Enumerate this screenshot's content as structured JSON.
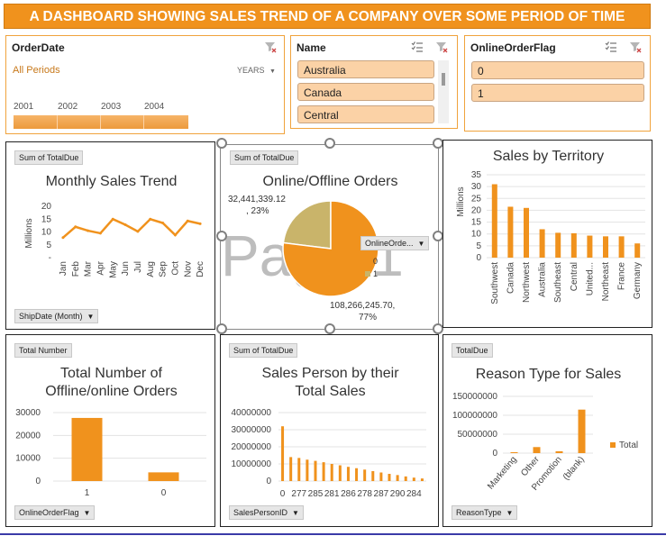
{
  "banner": {
    "title": "A DASHBOARD SHOWING SALES TREND OF A COMPANY OVER SOME PERIOD OF TIME"
  },
  "slicers": {
    "order_date": {
      "title": "OrderDate",
      "period_label": "All Periods",
      "granularity": "YEARS",
      "years": [
        "2001",
        "2002",
        "2003",
        "2004"
      ]
    },
    "name": {
      "title": "Name",
      "items": [
        "Australia",
        "Canada",
        "Central"
      ]
    },
    "online_flag": {
      "title": "OnlineOrderFlag",
      "items": [
        "0",
        "1"
      ]
    }
  },
  "watermark": "Page 1",
  "colors": {
    "accent": "#f0921d",
    "pie_second": "#c9b46a",
    "slicer_item": "#fbd2a6"
  },
  "chart_data": [
    {
      "type": "line",
      "title": "Monthly Sales Trend",
      "value_field": "Sum of TotalDue",
      "axis_field": "ShipDate (Month)",
      "ylabel": "Millions",
      "ylim": [
        0,
        20
      ],
      "yticks": [
        "20",
        "15",
        "10",
        "5",
        "-"
      ],
      "categories": [
        "Jan",
        "Feb",
        "Mar",
        "Apr",
        "May",
        "Jun",
        "Jul",
        "Aug",
        "Sep",
        "Oct",
        "Nov",
        "Dec"
      ],
      "values": [
        7.8,
        12,
        10.5,
        9.5,
        15,
        12.8,
        10.2,
        15,
        13.5,
        8.8,
        14.3,
        13.2
      ]
    },
    {
      "type": "pie",
      "title": "Online/Offline Orders",
      "value_field": "Sum of TotalDue",
      "legend_field": "OnlineOrde...",
      "slices": [
        {
          "name": "0",
          "value": 108266245.7,
          "label": "108,266,245.70,",
          "pct": "77%"
        },
        {
          "name": "1",
          "value": 32441339.12,
          "label": "32,441,339.12",
          "pct": ", 23%"
        }
      ]
    },
    {
      "type": "bar",
      "title": "Sales by Territory",
      "ylabel": "Millions",
      "ylim": [
        0,
        35
      ],
      "yticks": [
        "35",
        "30",
        "25",
        "20",
        "15",
        "10",
        "5",
        "0"
      ],
      "categories": [
        "Southwest",
        "Canada",
        "Northwest",
        "Australia",
        "Southeast",
        "Central",
        "United...",
        "Northeast",
        "France",
        "Germany"
      ],
      "values": [
        31,
        21.5,
        21,
        12,
        10.5,
        10.3,
        9.3,
        9,
        9,
        6
      ]
    },
    {
      "type": "bar",
      "title_lines": [
        "Total Number of",
        "Offline/online Orders"
      ],
      "value_field": "Total Number",
      "axis_field": "OnlineOrderFlag",
      "ylim": [
        0,
        30000
      ],
      "yticks": [
        "30000",
        "20000",
        "10000",
        "0"
      ],
      "categories": [
        "1",
        "0"
      ],
      "values": [
        27659,
        3806
      ]
    },
    {
      "type": "bar",
      "title_lines": [
        "Sales Person by their",
        "Total Sales"
      ],
      "value_field": "Sum of TotalDue",
      "axis_field": "SalesPersonID",
      "ylim": [
        0,
        40000000
      ],
      "yticks": [
        "40000000",
        "30000000",
        "20000000",
        "10000000",
        "0"
      ],
      "tick_labels": [
        "0",
        "277",
        "285",
        "281",
        "286",
        "278",
        "287",
        "290",
        "284"
      ],
      "values": [
        32000000,
        14000000,
        13500000,
        12500000,
        11800000,
        11000000,
        10000000,
        9200000,
        8300000,
        7500000,
        6700000,
        5800000,
        5000000,
        4200000,
        3500000,
        2700000,
        2000000,
        1500000
      ]
    },
    {
      "type": "bar",
      "title": "Reason Type for Sales",
      "value_field": "TotalDue",
      "axis_field": "ReasonType",
      "legend": "Total",
      "ylim": [
        0,
        150000000
      ],
      "yticks": [
        "150000000",
        "100000000",
        "50000000",
        "0"
      ],
      "categories": [
        "Marketing",
        "Other",
        "Promotion",
        "(blank)"
      ],
      "values": [
        2500000,
        16000000,
        5000000,
        115000000
      ]
    }
  ]
}
